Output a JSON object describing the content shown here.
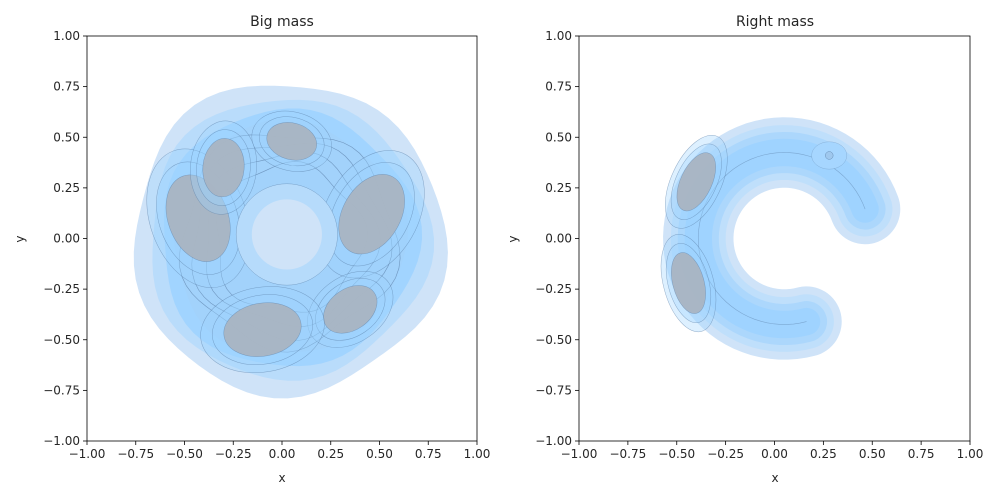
{
  "chart_data": [
    {
      "type": "contour",
      "title": "Big mass",
      "xlabel": "x",
      "ylabel": "y",
      "xlim": [
        -1.0,
        1.0
      ],
      "ylim": [
        -1.0,
        1.0
      ],
      "xticks": [
        "−1.00",
        "−0.75",
        "−0.50",
        "−0.25",
        "0.00",
        "0.25",
        "0.50",
        "0.75",
        "1.00"
      ],
      "yticks": [
        "1.00",
        "0.75",
        "0.50",
        "0.25",
        "0.00",
        "−0.25",
        "−0.50",
        "−0.75",
        "−1.00"
      ],
      "grid": false,
      "density_peaks": [
        {
          "x": -0.43,
          "y": 0.1,
          "w": 0.95
        },
        {
          "x": -0.3,
          "y": 0.35,
          "w": 0.55
        },
        {
          "x": 0.46,
          "y": 0.12,
          "w": 0.9
        },
        {
          "x": 0.35,
          "y": -0.35,
          "w": 0.55
        },
        {
          "x": -0.1,
          "y": -0.45,
          "w": 0.8
        },
        {
          "x": 0.05,
          "y": 0.48,
          "w": 0.45
        }
      ],
      "hole": {
        "x": 0.0,
        "y": 0.02,
        "r": 0.18
      }
    },
    {
      "type": "contour",
      "title": "Right mass",
      "xlabel": "x",
      "ylabel": "y",
      "xlim": [
        -1.0,
        1.0
      ],
      "ylim": [
        -1.0,
        1.0
      ],
      "xticks": [
        "−1.00",
        "−0.75",
        "−0.50",
        "−0.25",
        "0.00",
        "0.25",
        "0.50",
        "0.75",
        "1.00"
      ],
      "yticks": [
        "1.00",
        "0.75",
        "0.50",
        "0.25",
        "0.00",
        "−0.25",
        "−0.50",
        "−0.75",
        "−1.00"
      ],
      "grid": false,
      "density_peaks": [
        {
          "x": -0.4,
          "y": 0.28,
          "w": 1.0
        },
        {
          "x": -0.44,
          "y": -0.22,
          "w": 0.95
        },
        {
          "x": 0.28,
          "y": 0.41,
          "w": 0.55
        }
      ],
      "arc": {
        "cx": 0.05,
        "cy": 0.0,
        "r": 0.44,
        "start_deg": 20,
        "end_deg": 285
      }
    }
  ],
  "colors": {
    "fill": "#9fd3ff",
    "outer_fill": "#cfe3f8",
    "contour_line": "#5a7ea6",
    "dark_core": "#a9b4c2"
  }
}
